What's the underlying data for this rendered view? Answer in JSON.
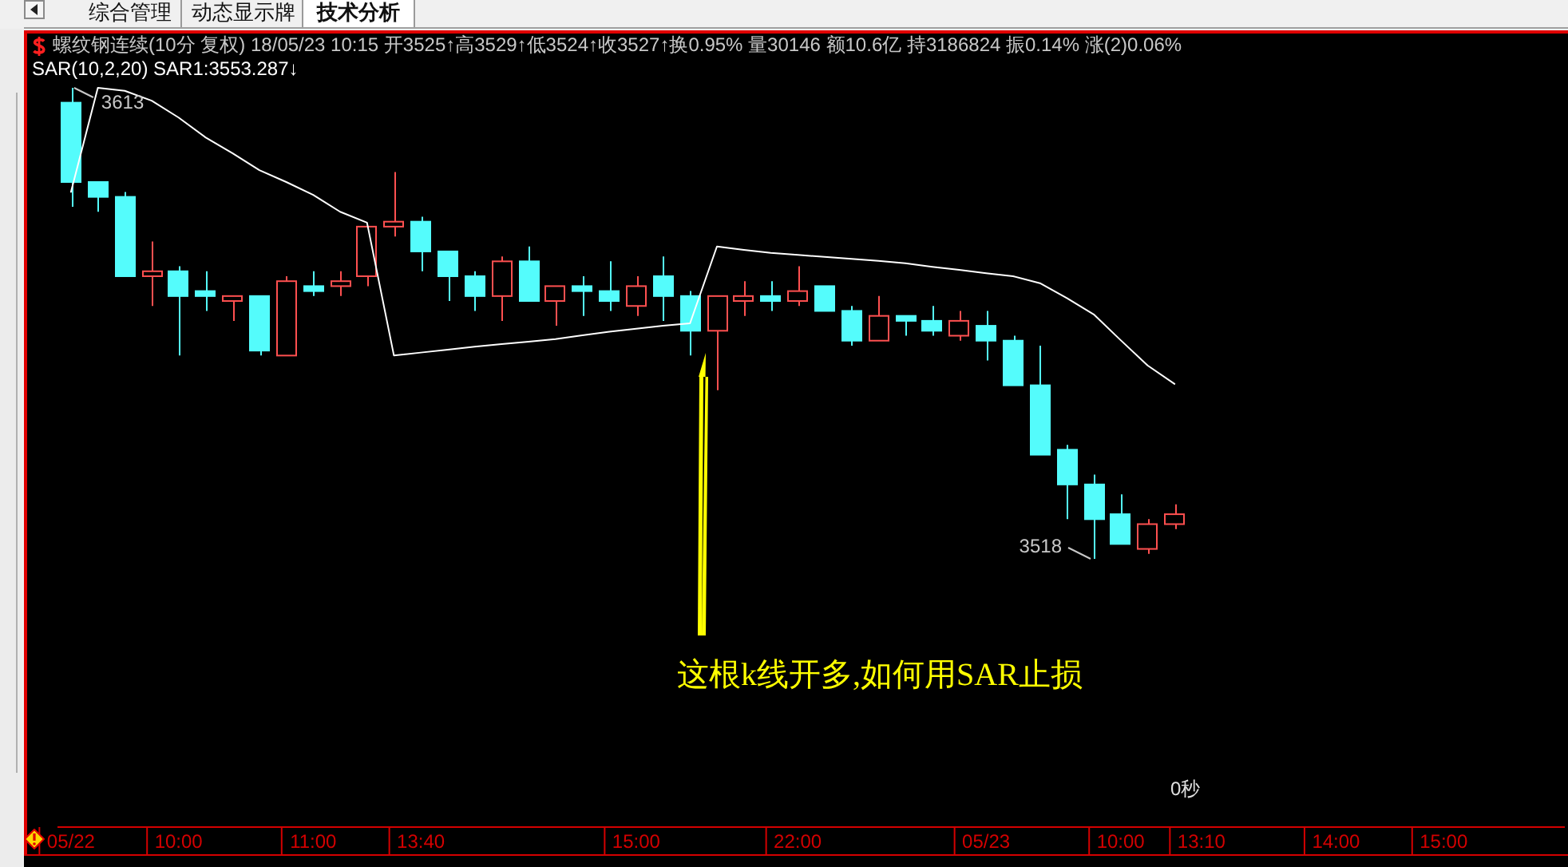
{
  "chart_data": {
    "type": "candlestick",
    "title": "螺纹钢连续(10分 复权) 18/05/23 10:15 开3525↑高3529↑低3524↑收3527↑换0.95% 量30146 额10.6亿 持3186824 振0.14% 涨(2)0.06%",
    "categories": [
      "05/22",
      null,
      null,
      null,
      "10:00",
      null,
      null,
      null,
      null,
      "11:00",
      null,
      null,
      null,
      "13:40",
      null,
      null,
      null,
      null,
      null,
      null,
      null,
      "15:00",
      null,
      null,
      null,
      null,
      null,
      "22:00",
      null,
      null,
      null,
      null,
      null,
      null,
      "05/23",
      null,
      null,
      null,
      null,
      "10:00",
      null,
      null,
      "13:10",
      null,
      null,
      null,
      null,
      "14:00",
      null,
      null,
      null,
      "15:00",
      null,
      null,
      null,
      null
    ],
    "ohlc": [
      [
        3610,
        3613,
        3589,
        3594
      ],
      [
        3594,
        3594,
        3588,
        3591
      ],
      [
        3591,
        3592,
        3575,
        3575
      ],
      [
        3575,
        3582,
        3569,
        3576
      ],
      [
        3576,
        3577,
        3559,
        3571
      ],
      [
        3572,
        3576,
        3568,
        3571
      ],
      [
        3570,
        3571,
        3566,
        3571
      ],
      [
        3571,
        3571,
        3559,
        3560
      ],
      [
        3559,
        3575,
        3559,
        3574
      ],
      [
        3573,
        3576,
        3571,
        3572
      ],
      [
        3573,
        3576,
        3571,
        3574
      ],
      [
        3575,
        3585,
        3573,
        3585
      ],
      [
        3585,
        3596,
        3583,
        3586
      ],
      [
        3586,
        3587,
        3576,
        3580
      ],
      [
        3580,
        3580,
        3570,
        3575
      ],
      [
        3575,
        3576,
        3568,
        3571
      ],
      [
        3571,
        3579,
        3566,
        3578
      ],
      [
        3578,
        3581,
        3570,
        3570
      ],
      [
        3570,
        3573,
        3565,
        3573
      ],
      [
        3573,
        3575,
        3567,
        3572
      ],
      [
        3572,
        3578,
        3568,
        3570
      ],
      [
        3569,
        3575,
        3567,
        3573
      ],
      [
        3575,
        3579,
        3566,
        3571
      ],
      [
        3571,
        3572,
        3559,
        3564
      ],
      [
        3564,
        3571,
        3552,
        3571
      ],
      [
        3570,
        3574,
        3567,
        3571
      ],
      [
        3571,
        3574,
        3568,
        3570
      ],
      [
        3570,
        3577,
        3569,
        3572
      ],
      [
        3573,
        3573,
        3568,
        3568
      ],
      [
        3568,
        3569,
        3561,
        3562
      ],
      [
        3562,
        3571,
        3562,
        3567
      ],
      [
        3567,
        3567,
        3563,
        3566
      ],
      [
        3566,
        3569,
        3563,
        3564
      ],
      [
        3563,
        3568,
        3562,
        3566
      ],
      [
        3565,
        3568,
        3558,
        3562
      ],
      [
        3562,
        3563,
        3553,
        3553
      ],
      [
        3553,
        3561,
        3539,
        3539
      ],
      [
        3540,
        3541,
        3526,
        3533
      ],
      [
        3533,
        3535,
        3518,
        3526
      ],
      [
        3527,
        3531,
        3521,
        3521
      ],
      [
        3520,
        3526,
        3519,
        3525
      ],
      [
        3525,
        3529,
        3524,
        3527
      ],
      null,
      null,
      null,
      null,
      null,
      null,
      null,
      null,
      null,
      null,
      null,
      null,
      null,
      null
    ],
    "colors": [
      "#54fcfc",
      "#54fcfc",
      "#54fcfc",
      "#ff5050",
      "#54fcfc",
      "#54fcfc",
      "#ff5050",
      "#54fcfc",
      "#ff5050",
      "#54fcfc",
      "#ff5050",
      "#ff5050",
      "#ff5050",
      "#54fcfc",
      "#54fcfc",
      "#54fcfc",
      "#ff5050",
      "#54fcfc",
      "#ff5050",
      "#54fcfc",
      "#54fcfc",
      "#ff5050",
      "#54fcfc",
      "#54fcfc",
      "#ff5050",
      "#ff5050",
      "#54fcfc",
      "#ff5050",
      "#54fcfc",
      "#54fcfc",
      "#ff5050",
      "#54fcfc",
      "#54fcfc",
      "#ff5050",
      "#54fcfc",
      "#54fcfc",
      "#54fcfc",
      "#54fcfc",
      "#54fcfc",
      "#54fcfc",
      "#ff5050",
      "#ff5050",
      null,
      null,
      null,
      null,
      null,
      null,
      null,
      null,
      null,
      null,
      null,
      null,
      null,
      null
    ],
    "series": [
      {
        "name": "SAR(10,2,20) SAR1:3553.287↓",
        "type": "line",
        "color": "#ffffff",
        "values": [
          3592,
          3613,
          3612.4,
          3610.4,
          3607,
          3603,
          3599.8,
          3596.4,
          3594,
          3591.4,
          3588,
          3585.8,
          3559,
          3559.6,
          3560.2,
          3560.8,
          3561.3,
          3561.8,
          3562.3,
          3563.1,
          3563.8,
          3564.4,
          3565,
          3565.5,
          3581,
          3580.3,
          3579.7,
          3579.3,
          3578.9,
          3578.5,
          3578.1,
          3577.6,
          3576.9,
          3576.3,
          3575.6,
          3575,
          3573.6,
          3570.6,
          3567.3,
          3562.1,
          3557,
          3553.287,
          null,
          null,
          null,
          null,
          null,
          null,
          null,
          null,
          null,
          null,
          null,
          null,
          null,
          null
        ]
      }
    ],
    "annotations": [
      "综合管理",
      "动态显示牌",
      "技术分析",
      {
        "text": "3613",
        "y": 3613
      },
      "3518",
      "这根k线开多,如何用SAR止损",
      "0秒"
    ],
    "legend": "top left",
    "tick_labels": "x"
  }
}
